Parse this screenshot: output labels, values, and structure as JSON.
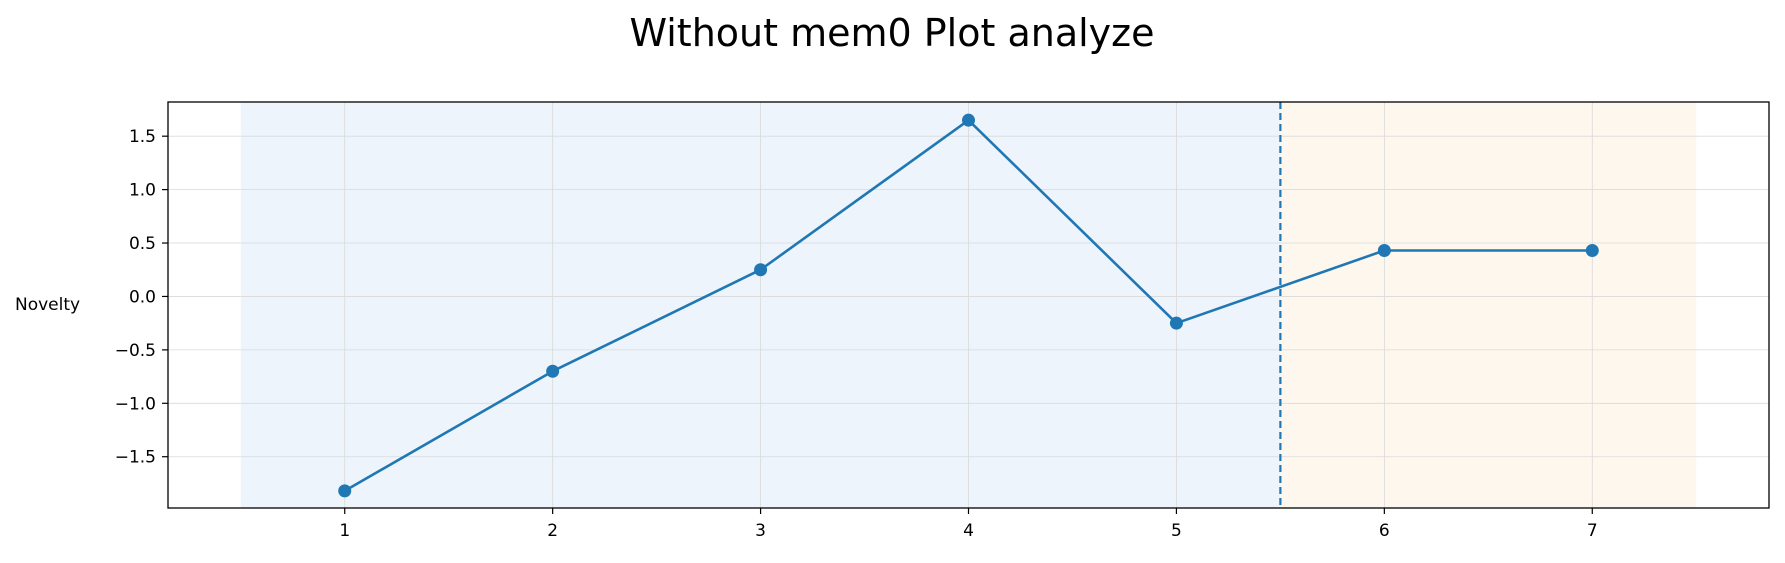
{
  "chart_data": {
    "type": "line",
    "title": "Without mem0 Plot analyze",
    "xlabel": "",
    "ylabel": "Novelty",
    "x": [
      1,
      2,
      3,
      4,
      5,
      6,
      7
    ],
    "y": [
      -1.82,
      -0.7,
      0.25,
      1.65,
      -0.25,
      0.43,
      0.43
    ],
    "xlim": [
      0.15,
      7.85
    ],
    "ylim": [
      -1.98,
      1.82
    ],
    "xticks": [
      1,
      2,
      3,
      4,
      5,
      6,
      7
    ],
    "yticks": [
      1.5,
      1.0,
      0.5,
      0.0,
      -0.5,
      -1.0,
      -1.5
    ],
    "ytick_labels": [
      "1.5",
      "1.0",
      "0.5",
      "0.0",
      "−0.5",
      "−1.0",
      "−1.5"
    ],
    "grid": true,
    "shaded_regions": [
      {
        "x_start": 0.5,
        "x_end": 5.5,
        "color": "#eef4fb"
      },
      {
        "x_start": 5.5,
        "x_end": 7.5,
        "color": "#fef7ee"
      }
    ],
    "vertical_line": {
      "x": 5.5,
      "style": "dashed",
      "color": "#1f77b4"
    },
    "line_color": "#1f77b4"
  }
}
